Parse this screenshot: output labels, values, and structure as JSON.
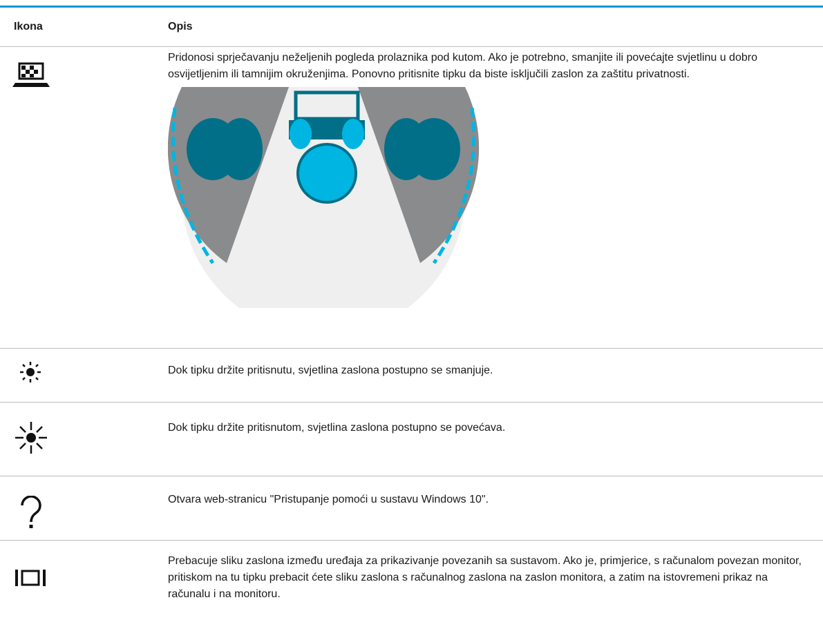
{
  "header": {
    "columns": [
      "Ikona",
      "Opis"
    ]
  },
  "rows": [
    {
      "description": "Pridonosi sprječavanju neželjenih pogleda prolaznika pod kutom. Ako je potrebno, smanjite ili povećajte svjetlinu u dobro osvijetljenim ili tamnijim okruženjima. Ponovno pritisnite tipku da biste isključili zaslon za zaštitu privatnosti."
    },
    {
      "description": "Dok tipku držite pritisnutu, svjetlina zaslona postupno se smanjuje."
    },
    {
      "description": "Dok tipku držite pritisnutom, svjetlina zaslona postupno se povećava."
    },
    {
      "description": "Otvara web-stranicu \"Pristupanje pomoći u sustavu Windows 10\"."
    },
    {
      "description": "Prebacuje sliku zaslona između uređaja za prikazivanje povezanih sa sustavom. Ako je, primjerice, s računalom povezan monitor, pritiskom na tu tipku prebacit ćete sliku zaslona s računalnog zaslona na zaslon monitora, a zatim na istovremeni prikaz na računalu i na monitoru."
    }
  ]
}
